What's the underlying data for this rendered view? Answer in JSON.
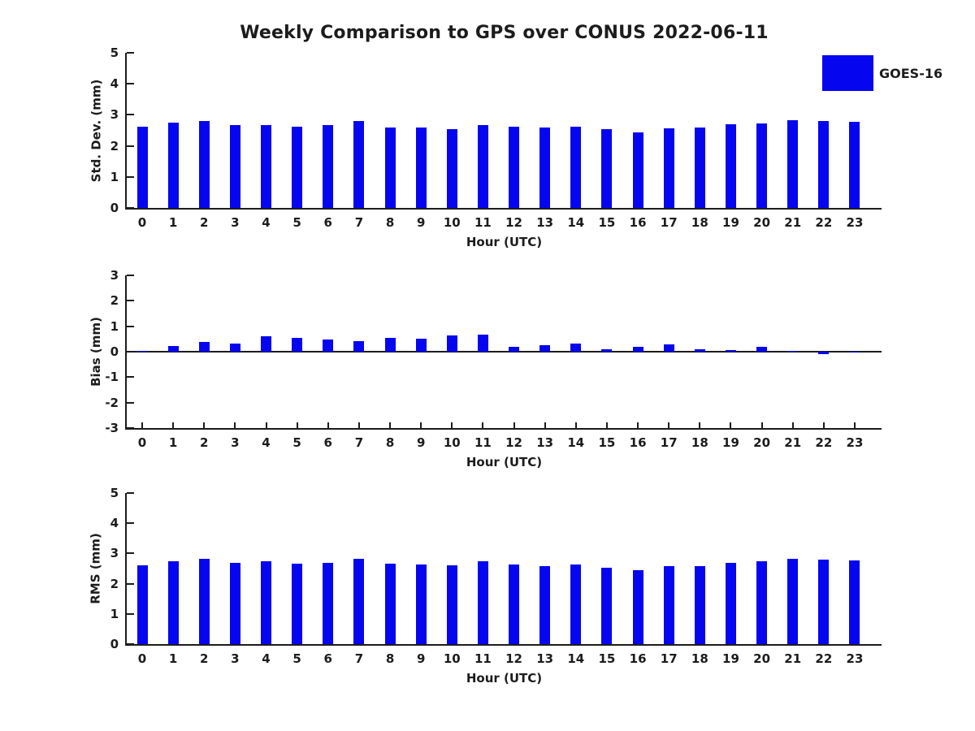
{
  "figure": {
    "title": "Weekly Comparison to GPS over CONUS 2022-06-11",
    "legend": {
      "label": "GOES-16"
    }
  },
  "colors": {
    "bar": "#0505f0",
    "axis": "#1c1c1c",
    "text": "#1c1c1c"
  },
  "chart_data": [
    {
      "type": "bar",
      "title": "Weekly Comparison to GPS over CONUS 2022-06-11",
      "series_name": "GOES-16",
      "ylabel": "Std. Dev. (mm)",
      "xlabel": "Hour (UTC)",
      "categories": [
        "0",
        "1",
        "2",
        "3",
        "4",
        "5",
        "6",
        "7",
        "8",
        "9",
        "10",
        "11",
        "12",
        "13",
        "14",
        "15",
        "16",
        "17",
        "18",
        "19",
        "20",
        "21",
        "22",
        "23"
      ],
      "values": [
        2.62,
        2.74,
        2.8,
        2.66,
        2.66,
        2.61,
        2.66,
        2.8,
        2.6,
        2.59,
        2.53,
        2.66,
        2.62,
        2.58,
        2.61,
        2.53,
        2.43,
        2.56,
        2.58,
        2.69,
        2.72,
        2.82,
        2.79,
        2.77
      ],
      "ylim": [
        0,
        5
      ],
      "yticks": [
        0,
        1,
        2,
        3,
        4,
        5
      ],
      "grid": false,
      "legend_position": "upper-right-outside"
    },
    {
      "type": "bar",
      "series_name": "GOES-16",
      "ylabel": "Bias (mm)",
      "xlabel": "Hour (UTC)",
      "categories": [
        "0",
        "1",
        "2",
        "3",
        "4",
        "5",
        "6",
        "7",
        "8",
        "9",
        "10",
        "11",
        "12",
        "13",
        "14",
        "15",
        "16",
        "17",
        "18",
        "19",
        "20",
        "21",
        "22",
        "23"
      ],
      "values": [
        0.03,
        0.23,
        0.38,
        0.33,
        0.61,
        0.54,
        0.47,
        0.42,
        0.55,
        0.52,
        0.64,
        0.68,
        0.2,
        0.26,
        0.33,
        0.1,
        0.19,
        0.3,
        0.11,
        0.07,
        0.19,
        0.04,
        -0.08,
        -0.02
      ],
      "ylim": [
        -3,
        3
      ],
      "yticks": [
        -3,
        -2,
        -1,
        0,
        1,
        2,
        3
      ],
      "grid": false
    },
    {
      "type": "bar",
      "series_name": "GOES-16",
      "ylabel": "RMS (mm)",
      "xlabel": "Hour (UTC)",
      "categories": [
        "0",
        "1",
        "2",
        "3",
        "4",
        "5",
        "6",
        "7",
        "8",
        "9",
        "10",
        "11",
        "12",
        "13",
        "14",
        "15",
        "16",
        "17",
        "18",
        "19",
        "20",
        "21",
        "22",
        "23"
      ],
      "values": [
        2.62,
        2.75,
        2.83,
        2.68,
        2.73,
        2.66,
        2.7,
        2.83,
        2.66,
        2.64,
        2.61,
        2.75,
        2.64,
        2.59,
        2.63,
        2.53,
        2.44,
        2.58,
        2.58,
        2.69,
        2.73,
        2.82,
        2.79,
        2.77
      ],
      "ylim": [
        0,
        5
      ],
      "yticks": [
        0,
        1,
        2,
        3,
        4,
        5
      ],
      "grid": false
    }
  ]
}
